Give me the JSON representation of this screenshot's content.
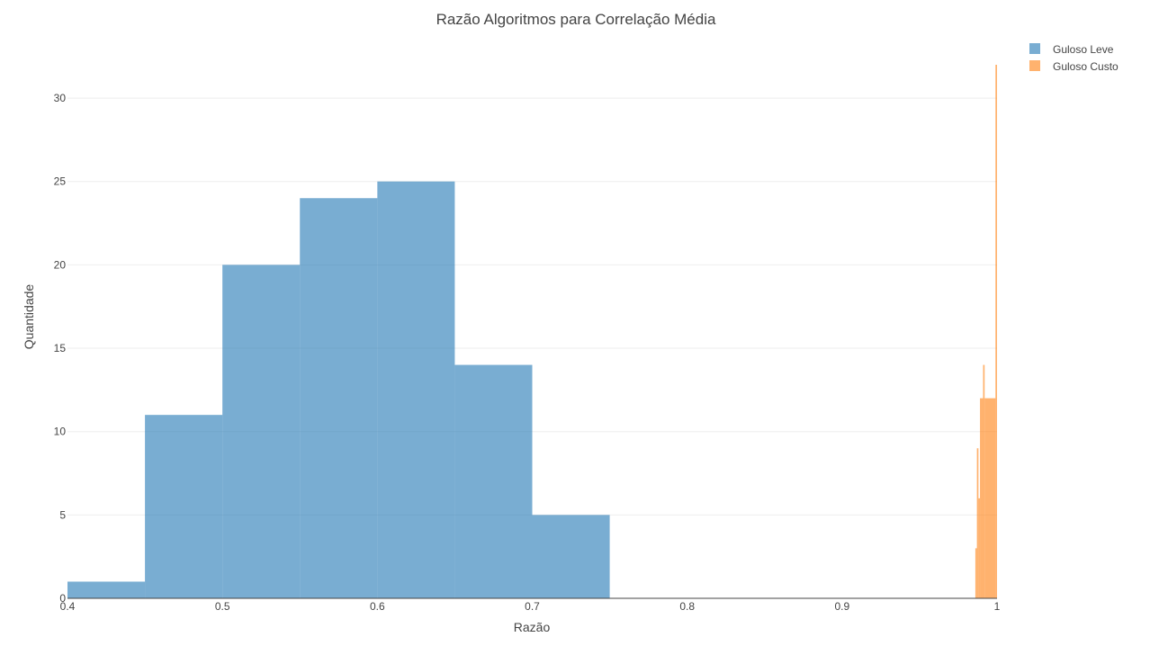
{
  "chart_data": {
    "type": "bar",
    "title": "Razão Algoritmos para Correlação Média",
    "xlabel": "Razão",
    "ylabel": "Quantidade",
    "xlim": [
      0.4,
      1.0
    ],
    "ylim": [
      0,
      32
    ],
    "x_ticks": [
      "0.4",
      "0.5",
      "0.6",
      "0.7",
      "0.8",
      "0.9",
      "1"
    ],
    "y_ticks": [
      "0",
      "5",
      "10",
      "15",
      "20",
      "25",
      "30"
    ],
    "grid": true,
    "legend_position": "top-right",
    "series": [
      {
        "name": "Guloso Leve",
        "color": "#1f77b4",
        "bins": [
          {
            "x0": 0.4,
            "x1": 0.45,
            "count": 1
          },
          {
            "x0": 0.45,
            "x1": 0.5,
            "count": 11
          },
          {
            "x0": 0.5,
            "x1": 0.55,
            "count": 20
          },
          {
            "x0": 0.55,
            "x1": 0.6,
            "count": 24
          },
          {
            "x0": 0.6,
            "x1": 0.65,
            "count": 25
          },
          {
            "x0": 0.65,
            "x1": 0.7,
            "count": 14
          },
          {
            "x0": 0.7,
            "x1": 0.75,
            "count": 5
          }
        ]
      },
      {
        "name": "Guloso Custo",
        "color": "#ff7f0e",
        "bins": [
          {
            "x0": 0.986,
            "x1": 0.987,
            "count": 3
          },
          {
            "x0": 0.987,
            "x1": 0.988,
            "count": 9
          },
          {
            "x0": 0.988,
            "x1": 0.989,
            "count": 6
          },
          {
            "x0": 0.989,
            "x1": 0.991,
            "count": 12
          },
          {
            "x0": 0.991,
            "x1": 0.992,
            "count": 14
          },
          {
            "x0": 0.992,
            "x1": 0.999,
            "count": 12
          },
          {
            "x0": 0.999,
            "x1": 1.0,
            "count": 32
          }
        ]
      }
    ]
  }
}
